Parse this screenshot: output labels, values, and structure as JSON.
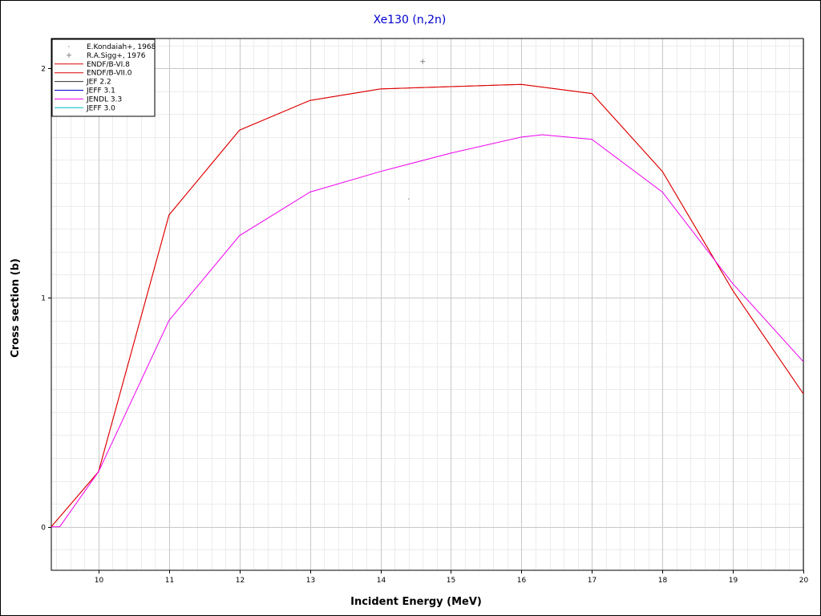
{
  "chart_data": {
    "type": "line",
    "title": "Xe130 (n,2n)",
    "xlabel": "Incident Energy (MeV)",
    "ylabel": "Cross section (b)",
    "xlim": [
      9.33,
      20.0
    ],
    "ylim": [
      -0.19,
      2.13
    ],
    "x_ticks": [
      10,
      11,
      12,
      13,
      14,
      15,
      16,
      17,
      18,
      19,
      20
    ],
    "y_ticks": [
      0,
      1,
      2
    ],
    "grid": true,
    "legend_position": "top-left",
    "colors": {
      "title": "#0000cc",
      "grid_major": "#c8c8c8",
      "grid_minor": "#ececec"
    },
    "series": [
      {
        "name": "E.Kondaiah+, 1968",
        "kind": "points",
        "color": "#999999",
        "marker": "dot",
        "points": [
          [
            14.4,
            1.43
          ]
        ]
      },
      {
        "name": "R.A.Sigg+, 1976",
        "kind": "points",
        "color": "#888888",
        "marker": "plus",
        "points": [
          [
            14.6,
            2.03
          ]
        ]
      },
      {
        "name": "ENDF/B-VI.8",
        "kind": "line",
        "color": "#dd0000",
        "points": [
          [
            9.33,
            0.0
          ],
          [
            10.0,
            0.24
          ],
          [
            11.0,
            1.36
          ],
          [
            12.0,
            1.73
          ],
          [
            13.0,
            1.86
          ],
          [
            14.0,
            1.91
          ],
          [
            15.0,
            1.92
          ],
          [
            16.0,
            1.93
          ],
          [
            17.0,
            1.89
          ],
          [
            18.0,
            1.55
          ],
          [
            19.0,
            1.03
          ],
          [
            20.0,
            0.58
          ]
        ]
      },
      {
        "name": "ENDF/B-VII.0",
        "kind": "line",
        "color": "#dd0000",
        "points": [
          [
            9.33,
            0.0
          ],
          [
            10.0,
            0.24
          ],
          [
            11.0,
            1.36
          ],
          [
            12.0,
            1.73
          ],
          [
            13.0,
            1.86
          ],
          [
            14.0,
            1.91
          ],
          [
            15.0,
            1.92
          ],
          [
            16.0,
            1.93
          ],
          [
            17.0,
            1.89
          ],
          [
            18.0,
            1.55
          ],
          [
            19.0,
            1.03
          ],
          [
            20.0,
            0.58
          ]
        ]
      },
      {
        "name": "JEF 2.2",
        "kind": "line",
        "color": "#333333",
        "points": []
      },
      {
        "name": "JEFF 3.1",
        "kind": "line",
        "color": "#0000cc",
        "points": []
      },
      {
        "name": "JENDL 3.3",
        "kind": "line",
        "color": "#ee00ee",
        "points": [
          [
            9.33,
            0.0
          ],
          [
            9.45,
            0.0
          ],
          [
            10.0,
            0.24
          ],
          [
            11.0,
            0.9
          ],
          [
            12.0,
            1.27
          ],
          [
            13.0,
            1.46
          ],
          [
            14.0,
            1.55
          ],
          [
            15.0,
            1.63
          ],
          [
            16.0,
            1.7
          ],
          [
            16.3,
            1.71
          ],
          [
            17.0,
            1.69
          ],
          [
            18.0,
            1.46
          ],
          [
            19.0,
            1.06
          ],
          [
            20.0,
            0.72
          ]
        ]
      },
      {
        "name": "JEFF 3.0",
        "kind": "line",
        "color": "#00bbbb",
        "points": []
      }
    ]
  }
}
